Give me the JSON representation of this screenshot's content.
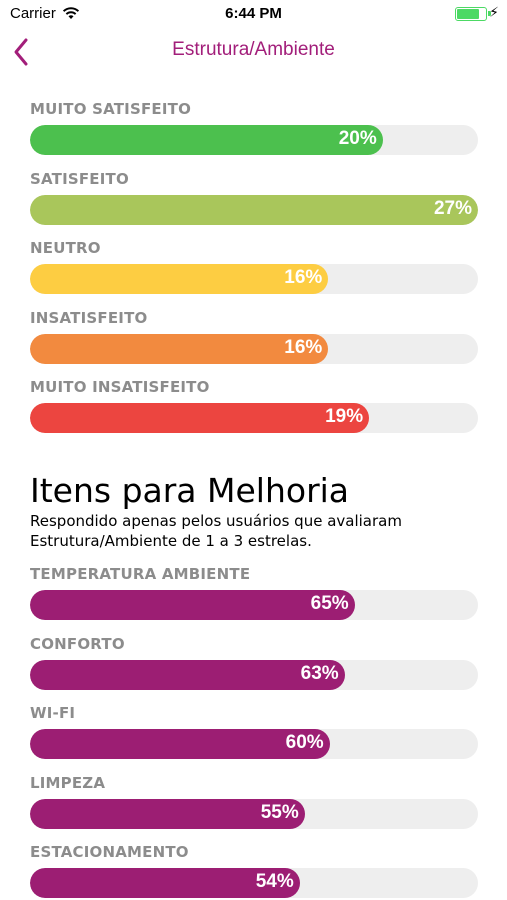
{
  "status_bar": {
    "carrier": "Carrier",
    "time": "6:44 PM"
  },
  "nav": {
    "title": "Estrutura/Ambiente",
    "back_icon": "chevron-left-icon"
  },
  "colors": {
    "accent": "#a21e7a",
    "track": "#eeeeee"
  },
  "satisfaction": [
    {
      "label": "MUITO SATISFEITO",
      "value": "20%",
      "percent": 20,
      "color": "#4cc04e"
    },
    {
      "label": "SATISFEITO",
      "value": "27%",
      "percent": 27,
      "color": "#a9c65b"
    },
    {
      "label": "NEUTRO",
      "value": "16%",
      "percent": 16,
      "color": "#fdcd42"
    },
    {
      "label": "INSATISFEITO",
      "value": "16%",
      "percent": 16,
      "color": "#f28a3f"
    },
    {
      "label": "MUITO INSATISFEITO",
      "value": "19%",
      "percent": 19,
      "color": "#ec4540"
    }
  ],
  "improvement": {
    "title": "Itens para Melhoria",
    "subtitle": "Respondido apenas pelos usuários que avaliaram Estrutura/Ambiente de 1 a 3 estrelas.",
    "items": [
      {
        "label": "TEMPERATURA AMBIENTE",
        "value": "65%",
        "percent": 65,
        "color": "#9c1e73"
      },
      {
        "label": "CONFORTO",
        "value": "63%",
        "percent": 63,
        "color": "#9c1e73"
      },
      {
        "label": "WI-FI",
        "value": "60%",
        "percent": 60,
        "color": "#9c1e73"
      },
      {
        "label": "LIMPEZA",
        "value": "55%",
        "percent": 55,
        "color": "#9c1e73"
      },
      {
        "label": "ESTACIONAMENTO",
        "value": "54%",
        "percent": 54,
        "color": "#9c1e73"
      }
    ]
  }
}
